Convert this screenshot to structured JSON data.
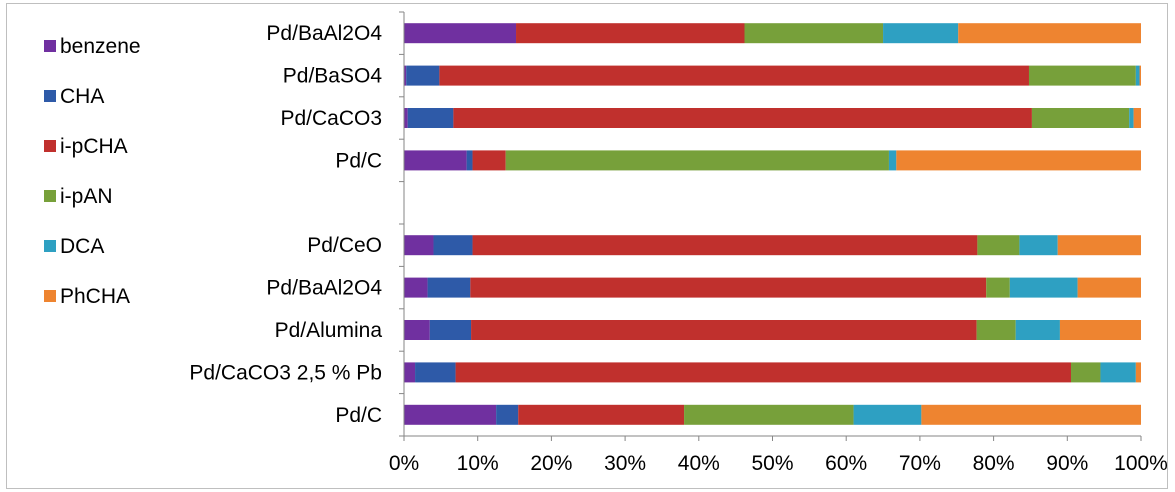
{
  "chart_data": {
    "type": "bar",
    "orientation": "horizontal",
    "stacked": "percent",
    "categories": [
      "Pd/BaAl2O4",
      "Pd/BaSO4",
      "Pd/CaCO3",
      "Pd/C",
      "",
      "Pd/CeO",
      "Pd/BaAl2O4",
      "Pd/Alumina",
      "Pd/CaCO3 2,5 % Pb",
      "Pd/C"
    ],
    "series": [
      {
        "name": "benzene",
        "color": "#7030a0",
        "values": [
          15.2,
          0.3,
          0.5,
          8.5,
          null,
          4.0,
          3.2,
          3.5,
          1.5,
          12.5
        ]
      },
      {
        "name": "CHA",
        "color": "#2e5aa8",
        "values": [
          0.0,
          4.5,
          6.2,
          0.8,
          null,
          5.3,
          5.8,
          5.6,
          5.5,
          3.0
        ]
      },
      {
        "name": "i-pCHA",
        "color": "#c0302d",
        "values": [
          31.0,
          80.0,
          78.5,
          4.5,
          null,
          68.5,
          70.0,
          68.6,
          83.5,
          22.5
        ]
      },
      {
        "name": "i-pAN",
        "color": "#77a03a",
        "values": [
          18.8,
          14.5,
          13.2,
          52.0,
          null,
          5.7,
          3.2,
          5.3,
          4.0,
          23.0
        ]
      },
      {
        "name": "DCA",
        "color": "#2ea0c2",
        "values": [
          10.2,
          0.5,
          0.6,
          1.0,
          null,
          5.2,
          9.2,
          6.0,
          4.8,
          9.2
        ]
      },
      {
        "name": "PhCHA",
        "color": "#ee8430",
        "values": [
          24.8,
          0.2,
          1.0,
          33.2,
          null,
          11.3,
          8.6,
          11.0,
          0.7,
          29.8
        ]
      }
    ],
    "xlim": [
      0,
      100
    ],
    "xticks": [
      "0%",
      "10%",
      "20%",
      "30%",
      "40%",
      "50%",
      "60%",
      "70%",
      "80%",
      "90%",
      "100%"
    ],
    "grid": false,
    "legend": "left",
    "title": "",
    "xlabel": "",
    "ylabel": ""
  }
}
